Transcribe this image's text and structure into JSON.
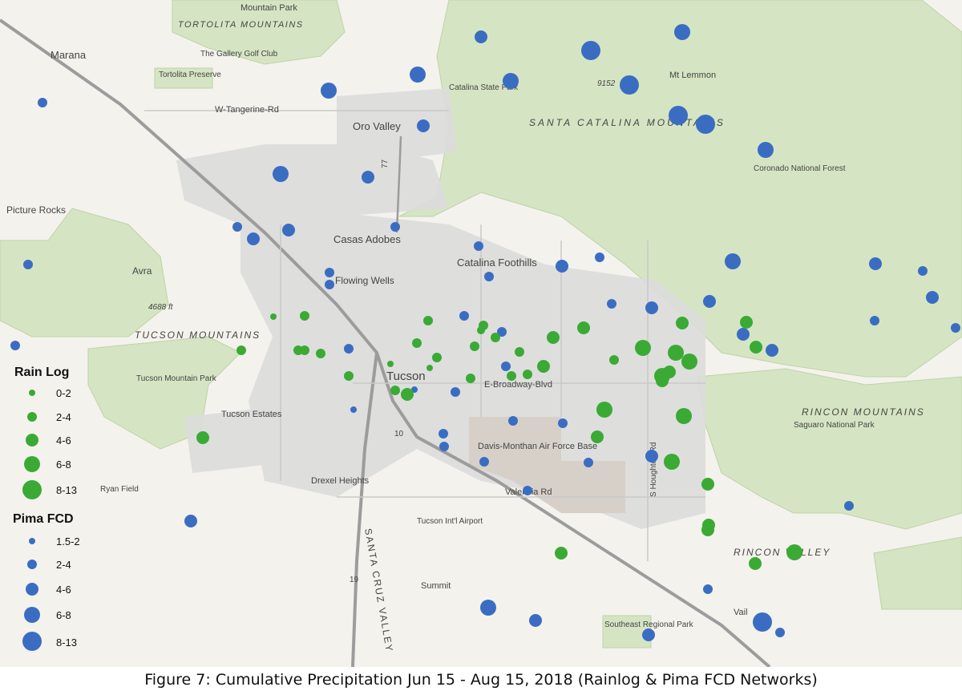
{
  "caption": "Figure 7: Cumulative Precipitation Jun 15 - Aug 15, 2018 (Rainlog & Pima FCD Networks)",
  "colors": {
    "rainlog": "#3aaa35",
    "pima_fcd": "#3a6dc2",
    "forest": "#d5e5c3",
    "urban": "#dcdcdc",
    "desert": "#f4f2ec",
    "airbase": "#d7d0c8",
    "highway": "#9c9c9c"
  },
  "legend": {
    "rainlog": {
      "title": "Rain Log",
      "items": [
        "0-2",
        "2-4",
        "4-6",
        "6-8",
        "8-13"
      ]
    },
    "pima_fcd": {
      "title": "Pima FCD",
      "items": [
        "1.5-2",
        "2-4",
        "4-6",
        "6-8",
        "8-13"
      ]
    }
  },
  "labels": {
    "mountain_park": "Mountain Park",
    "tortolita_mountains": "TORTOLITA MOUNTAINS",
    "marana": "Marana",
    "gallery_golf": "The Gallery Golf Club",
    "tortolita_preserve": "Tortolita Preserve",
    "tangerine": "W-Tangerine-Rd",
    "catalina_state_park": "Catalina State Park",
    "oro_valley": "Oro Valley",
    "elev_9152": "9152",
    "mt_lemmon": "Mt Lemmon",
    "santa_catalina": "SANTA CATALINA MOUNTAINS",
    "coronado": "Coronado National Forest",
    "picture_rocks": "Picture Rocks",
    "casas_adobes": "Casas Adobes",
    "catalina_foothills": "Catalina Foothills",
    "avra": "Avra",
    "flowing_wells": "Flowing Wells",
    "elev_4688": "4688 ft",
    "tucson_mountains": "TUCSON MOUNTAINS",
    "tucson": "Tucson",
    "broadway": "E-Broadway-Blvd",
    "tucson_mountain_park": "Tucson Mountain Park",
    "rincon_mountains": "RINCON MOUNTAINS",
    "saguaro": "Saguaro National Park",
    "tucson_estates": "Tucson Estates",
    "i10": "10",
    "davis_monthan": "Davis-Monthan Air Force Base",
    "houghton": "S Houghton Rd",
    "drexel": "Drexel Heights",
    "ryan": "Ryan Field",
    "valencia": "Valencia Rd",
    "airport": "Tucson Int'l Airport",
    "rincon_valley": "RINCON VALLEY",
    "santa_cruz": "SANTA CRUZ VALLEY",
    "i19": "19",
    "summit": "Summit",
    "vail": "Vail",
    "southeast_park": "Southeast Regional Park",
    "route77": "77"
  }
}
